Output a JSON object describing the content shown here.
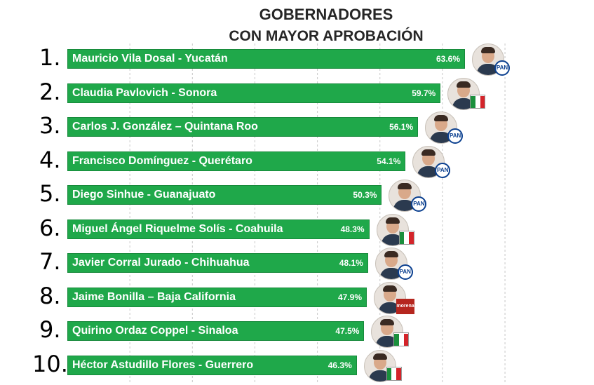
{
  "chart_data": {
    "type": "bar",
    "orientation": "horizontal",
    "title": "GOBERNADORES",
    "subtitle": "CON MAYOR APROBACIÓN",
    "xlim": [
      0,
      70
    ],
    "grid": true,
    "ranks": [
      "1.",
      "2.",
      "3.",
      "4.",
      "5.",
      "6.",
      "7.",
      "8.",
      "9.",
      "10."
    ],
    "categories": [
      "Mauricio Vila Dosal - Yucatán",
      "Claudia Pavlovich - Sonora",
      "Carlos J. González – Quintana Roo",
      "Francisco Domínguez - Querétaro",
      "Diego Sinhue - Guanajuato",
      "Miguel Ángel Riquelme Solís - Coahuila",
      "Javier Corral Jurado - Chihuahua",
      "Jaime Bonilla – Baja California",
      "Quirino Ordaz Coppel - Sinaloa",
      "Héctor Astudillo Flores - Guerrero"
    ],
    "values": [
      63.6,
      59.7,
      56.1,
      54.1,
      50.3,
      48.3,
      48.1,
      47.9,
      47.5,
      46.3
    ],
    "value_labels": [
      "63.6%",
      "59.7%",
      "56.1%",
      "54.1%",
      "50.3%",
      "48.3%",
      "48.1%",
      "47.9%",
      "47.5%",
      "46.3%"
    ],
    "parties": [
      "PAN",
      "PRI",
      "PAN",
      "PAN",
      "PAN",
      "PRI",
      "PAN",
      "morena",
      "PRI",
      "PRI"
    ],
    "bar_color": "#1fa84a"
  },
  "logos": {
    "pan_text": "PAN",
    "morena_text": "morena"
  },
  "colors": {
    "pan_blue": "#0a3f8f",
    "pri_green": "#1a8f3c",
    "pri_red": "#d4242a",
    "morena_red": "#b5261e",
    "gridline": "#c8c8c8"
  }
}
